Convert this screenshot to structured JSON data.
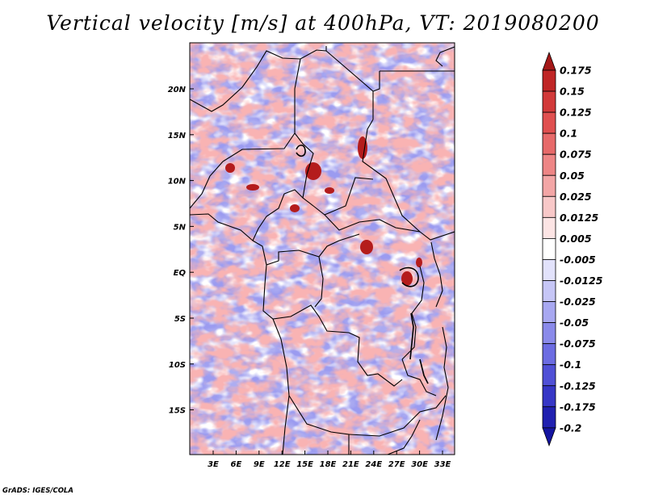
{
  "title": "Vertical velocity [m/s] at 400hPa, VT: 2019080200",
  "credit": "GrADS: IGES/COLA",
  "map": {
    "region": "Central Africa",
    "lat_labels": [
      "20N",
      "15N",
      "10N",
      "5N",
      "EQ",
      "5S",
      "10S",
      "15S"
    ],
    "lon_labels": [
      "3E",
      "6E",
      "9E",
      "12E",
      "15E",
      "18E",
      "21E",
      "24E",
      "27E",
      "30E",
      "33E"
    ],
    "background_color": "#9b9bf0",
    "hotspot_color": "#b41c1c"
  },
  "colorbar": {
    "labels": [
      "0.175",
      "0.15",
      "0.125",
      "0.1",
      "0.075",
      "0.05",
      "0.025",
      "0.0125",
      "0.005",
      "-0.005",
      "-0.0125",
      "-0.025",
      "-0.05",
      "-0.075",
      "-0.1",
      "-0.125",
      "-0.175",
      "-0.2"
    ],
    "colors": [
      "#a41818",
      "#c02626",
      "#d23a3a",
      "#e05050",
      "#e76a6a",
      "#ee8686",
      "#f3a6a6",
      "#f8c8c8",
      "#fce4e4",
      "#ffffff",
      "#e2e2fb",
      "#c6c6f6",
      "#a8a8f1",
      "#8a8aea",
      "#6c6ce2",
      "#5050d6",
      "#3636c6",
      "#2020b0",
      "#1414a0"
    ]
  }
}
